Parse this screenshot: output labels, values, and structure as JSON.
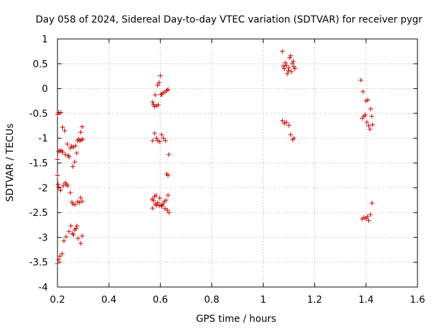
{
  "chart_data": {
    "type": "scatter",
    "title": "Day 058 of 2024, Sidereal Day-to-day VTEC variation (SDTVAR) for receiver pygr",
    "xlabel": "GPS time / hours",
    "ylabel": "SDTVAR / TECUs",
    "xlim": [
      0.2,
      1.6
    ],
    "ylim": [
      -4,
      1
    ],
    "xticks": [
      0.2,
      0.4,
      0.6,
      0.8,
      1.0,
      1.2,
      1.4,
      1.6
    ],
    "xtick_labels": [
      "0.2",
      "0.4",
      "0.6",
      "0.8",
      "1",
      "1.2",
      "1.4",
      "1.6"
    ],
    "yticks": [
      -4,
      -3.5,
      -3,
      -2.5,
      -2,
      -1.5,
      -1,
      -0.5,
      0,
      0.5,
      1
    ],
    "ytick_labels": [
      "-4",
      "-3.5",
      "-3",
      "-2.5",
      "-2",
      "-1.5",
      "-1",
      "-0.5",
      "0",
      "0.5",
      "1"
    ],
    "grid": true,
    "marker": "+",
    "marker_color": "#cc0000",
    "series": [
      {
        "name": "SDTVAR",
        "points": [
          [
            0.2,
            -0.52
          ],
          [
            0.205,
            -0.48
          ],
          [
            0.213,
            -0.48
          ],
          [
            0.22,
            -0.78
          ],
          [
            0.228,
            -0.85
          ],
          [
            0.2,
            -1.43
          ],
          [
            0.205,
            -1.27
          ],
          [
            0.21,
            -1.25
          ],
          [
            0.215,
            -1.25
          ],
          [
            0.22,
            -1.28
          ],
          [
            0.23,
            -1.33
          ],
          [
            0.238,
            -1.12
          ],
          [
            0.242,
            -1.35
          ],
          [
            0.245,
            -1.38
          ],
          [
            0.25,
            -1.2
          ],
          [
            0.255,
            -1.16
          ],
          [
            0.26,
            -1.57
          ],
          [
            0.262,
            -1.18
          ],
          [
            0.267,
            -1.48
          ],
          [
            0.27,
            -1.15
          ],
          [
            0.275,
            -1.3
          ],
          [
            0.278,
            -1.05
          ],
          [
            0.282,
            -1.02
          ],
          [
            0.287,
            -1.05
          ],
          [
            0.29,
            -0.88
          ],
          [
            0.292,
            -1.04
          ],
          [
            0.296,
            -0.77
          ],
          [
            0.298,
            -1.02
          ],
          [
            0.2,
            -1.75
          ],
          [
            0.202,
            -1.93
          ],
          [
            0.205,
            -1.99
          ],
          [
            0.212,
            -2.05
          ],
          [
            0.222,
            -1.96
          ],
          [
            0.23,
            -1.9
          ],
          [
            0.235,
            -1.93
          ],
          [
            0.24,
            -1.96
          ],
          [
            0.25,
            -2.1
          ],
          [
            0.256,
            -2.29
          ],
          [
            0.26,
            -2.33
          ],
          [
            0.268,
            -2.34
          ],
          [
            0.278,
            -2.28
          ],
          [
            0.285,
            -2.3
          ],
          [
            0.29,
            -2.2
          ],
          [
            0.296,
            -2.27
          ],
          [
            0.2,
            -3.53
          ],
          [
            0.205,
            -3.45
          ],
          [
            0.21,
            -3.38
          ],
          [
            0.218,
            -3.33
          ],
          [
            0.225,
            -3.07
          ],
          [
            0.233,
            -2.99
          ],
          [
            0.245,
            -2.88
          ],
          [
            0.252,
            -2.77
          ],
          [
            0.258,
            -2.92
          ],
          [
            0.262,
            -2.95
          ],
          [
            0.267,
            -2.85
          ],
          [
            0.272,
            -2.82
          ],
          [
            0.276,
            -2.77
          ],
          [
            0.28,
            -3.02
          ],
          [
            0.29,
            -3.12
          ],
          [
            0.296,
            -2.97
          ],
          [
            0.57,
            -0.27
          ],
          [
            0.573,
            -0.32
          ],
          [
            0.577,
            -0.36
          ],
          [
            0.58,
            -0.13
          ],
          [
            0.585,
            -0.35
          ],
          [
            0.59,
            0.07
          ],
          [
            0.592,
            -0.33
          ],
          [
            0.595,
            0.12
          ],
          [
            0.6,
            0.26
          ],
          [
            0.602,
            -0.12
          ],
          [
            0.605,
            -0.12
          ],
          [
            0.61,
            -0.09
          ],
          [
            0.618,
            -0.07
          ],
          [
            0.625,
            -0.04
          ],
          [
            0.63,
            -0.02
          ],
          [
            0.57,
            -1.05
          ],
          [
            0.578,
            -0.9
          ],
          [
            0.585,
            -1.0
          ],
          [
            0.59,
            -1.05
          ],
          [
            0.598,
            -1.07
          ],
          [
            0.605,
            -0.93
          ],
          [
            0.612,
            -1.0
          ],
          [
            0.62,
            -1.05
          ],
          [
            0.625,
            -1.72
          ],
          [
            0.63,
            -1.75
          ],
          [
            0.633,
            -1.33
          ],
          [
            0.568,
            -2.23
          ],
          [
            0.57,
            -2.41
          ],
          [
            0.573,
            -2.26
          ],
          [
            0.577,
            -2.18
          ],
          [
            0.58,
            -2.33
          ],
          [
            0.583,
            -2.15
          ],
          [
            0.585,
            -2.35
          ],
          [
            0.59,
            -2.3
          ],
          [
            0.595,
            -2.36
          ],
          [
            0.598,
            -2.21
          ],
          [
            0.603,
            -2.35
          ],
          [
            0.606,
            -2.37
          ],
          [
            0.61,
            -2.33
          ],
          [
            0.615,
            -2.28
          ],
          [
            0.618,
            -2.42
          ],
          [
            0.622,
            -2.25
          ],
          [
            0.627,
            -2.45
          ],
          [
            0.63,
            -2.15
          ],
          [
            0.634,
            -2.5
          ],
          [
            1.075,
            0.75
          ],
          [
            1.078,
            0.45
          ],
          [
            1.082,
            0.4
          ],
          [
            1.086,
            0.52
          ],
          [
            1.09,
            0.47
          ],
          [
            1.094,
            0.3
          ],
          [
            1.098,
            0.36
          ],
          [
            1.1,
            0.42
          ],
          [
            1.103,
            0.62
          ],
          [
            1.107,
            0.66
          ],
          [
            1.11,
            0.34
          ],
          [
            1.113,
            0.5
          ],
          [
            1.117,
            0.55
          ],
          [
            1.12,
            0.44
          ],
          [
            1.123,
            0.4
          ],
          [
            1.075,
            -0.65
          ],
          [
            1.082,
            -0.7
          ],
          [
            1.09,
            -0.68
          ],
          [
            1.1,
            -0.74
          ],
          [
            1.107,
            -0.93
          ],
          [
            1.114,
            -1.03
          ],
          [
            1.12,
            -1.0
          ],
          [
            1.38,
            0.17
          ],
          [
            1.385,
            -0.6
          ],
          [
            1.388,
            -0.06
          ],
          [
            1.392,
            -0.56
          ],
          [
            1.397,
            -0.53
          ],
          [
            1.4,
            -0.25
          ],
          [
            1.403,
            -0.68
          ],
          [
            1.407,
            -0.23
          ],
          [
            1.41,
            -0.75
          ],
          [
            1.415,
            -0.82
          ],
          [
            1.418,
            -0.41
          ],
          [
            1.422,
            -0.56
          ],
          [
            1.425,
            -0.73
          ],
          [
            1.385,
            -2.63
          ],
          [
            1.392,
            -2.6
          ],
          [
            1.4,
            -2.62
          ],
          [
            1.405,
            -2.58
          ],
          [
            1.41,
            -2.66
          ],
          [
            1.417,
            -2.54
          ],
          [
            1.423,
            -2.31
          ]
        ]
      }
    ]
  }
}
